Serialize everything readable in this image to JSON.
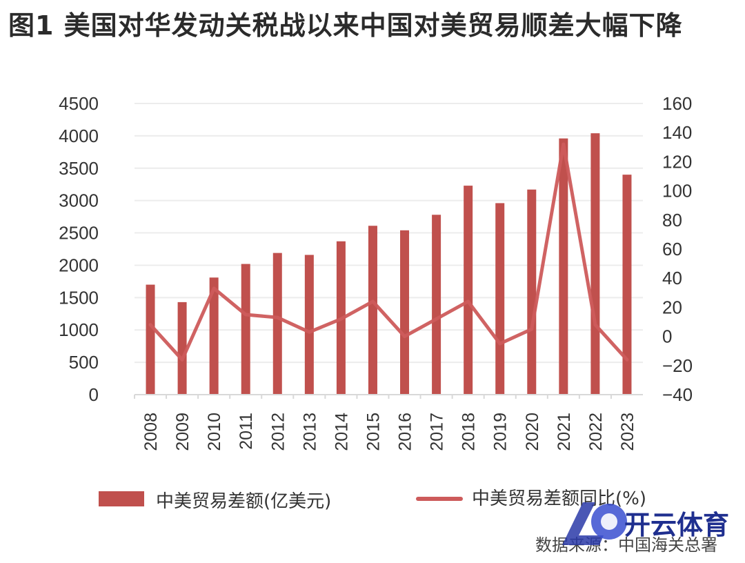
{
  "title": "图1  美国对华发动关税战以来中国对美贸易顺差大幅下降",
  "source": "数据来源：中国海关总署",
  "watermark_text": "开云体育",
  "colors": {
    "bar": "#c0504d",
    "line": "#cd5b5b",
    "grid": "#ececec",
    "text": "#333333"
  },
  "chart_data": {
    "type": "bar",
    "categories": [
      "2008",
      "2009",
      "2010",
      "2011",
      "2012",
      "2013",
      "2014",
      "2015",
      "2016",
      "2017",
      "2018",
      "2019",
      "2020",
      "2021",
      "2022",
      "2023"
    ],
    "series": [
      {
        "name": "中美贸易差额(亿美元)",
        "type": "bar",
        "axis": "left",
        "values": [
          1700,
          1430,
          1810,
          2020,
          2190,
          2160,
          2370,
          2610,
          2540,
          2780,
          3230,
          2960,
          3170,
          3960,
          4040,
          3400
        ]
      },
      {
        "name": "中美贸易差额同比(%)",
        "type": "line",
        "axis": "right",
        "values": [
          8,
          -16,
          33,
          15,
          13,
          3,
          12,
          24,
          0,
          12,
          24,
          -5,
          5,
          132,
          8,
          -16
        ]
      }
    ],
    "y_left": {
      "ylim": [
        0,
        4500
      ],
      "ticks": [
        "0",
        "500",
        "1000",
        "1500",
        "2000",
        "2500",
        "3000",
        "3500",
        "4000",
        "4500"
      ]
    },
    "y_right": {
      "ylim": [
        -40,
        160
      ],
      "ticks": [
        "−40",
        "−20",
        "0",
        "20",
        "40",
        "60",
        "80",
        "100",
        "120",
        "140",
        "160"
      ]
    },
    "grid": true,
    "legend": "bottom"
  }
}
